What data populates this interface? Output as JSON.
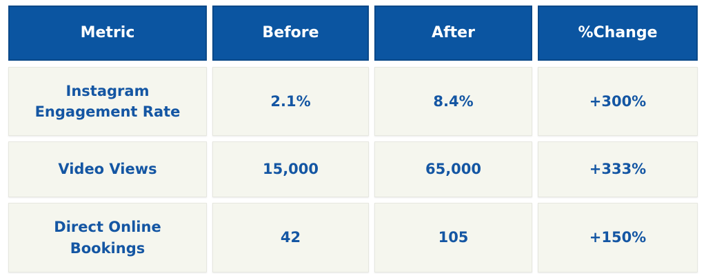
{
  "table": {
    "header": [
      "Metric",
      "Before",
      "After",
      "%Change"
    ],
    "rows": [
      [
        "Instagram Engagement Rate",
        "2.1%",
        "8.4%",
        "+300%"
      ],
      [
        "Video Views",
        "15,000",
        "65,000",
        "+333%"
      ],
      [
        "Direct Online Bookings",
        "42",
        "105",
        "+150%"
      ]
    ]
  }
}
